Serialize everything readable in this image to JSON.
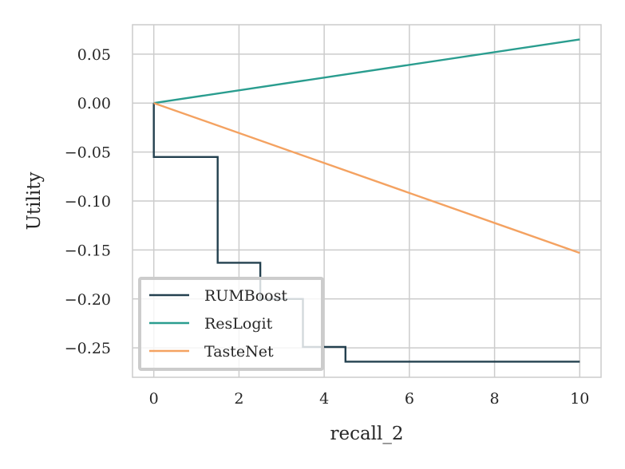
{
  "chart_data": {
    "type": "line",
    "xlabel": "recall_2",
    "ylabel": "Utility",
    "xlim": [
      -0.5,
      10.5
    ],
    "ylim": [
      -0.28,
      0.08
    ],
    "xticks": [
      0,
      2,
      4,
      6,
      8,
      10
    ],
    "xtick_labels": [
      "0",
      "2",
      "4",
      "6",
      "8",
      "10"
    ],
    "yticks": [
      0.05,
      0.0,
      -0.05,
      -0.1,
      -0.15,
      -0.2,
      -0.25
    ],
    "ytick_labels": [
      "0.05",
      "0.00",
      "−0.05",
      "−0.10",
      "−0.15",
      "−0.20",
      "−0.25"
    ],
    "grid": true,
    "legend_position": "lower-left",
    "series": [
      {
        "name": "RUMBoost",
        "color": "#23404f",
        "drawstyle": "step",
        "x": [
          0,
          0,
          1.5,
          1.5,
          2.5,
          2.5,
          3.5,
          3.5,
          4.5,
          4.5,
          10
        ],
        "y": [
          0,
          -0.055,
          -0.055,
          -0.163,
          -0.163,
          -0.2,
          -0.2,
          -0.249,
          -0.249,
          -0.264,
          -0.264
        ]
      },
      {
        "name": "ResLogit",
        "color": "#2a9d8f",
        "drawstyle": "line",
        "x": [
          0,
          10
        ],
        "y": [
          0,
          0.065
        ]
      },
      {
        "name": "TasteNet",
        "color": "#f4a261",
        "drawstyle": "line",
        "x": [
          0,
          10
        ],
        "y": [
          0,
          -0.153
        ]
      }
    ]
  }
}
